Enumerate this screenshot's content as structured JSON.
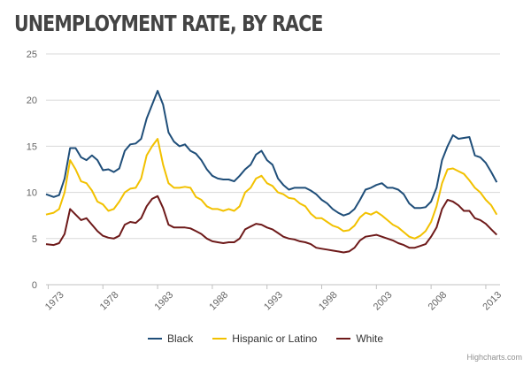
{
  "chart_data": {
    "type": "line",
    "title": "UNEMPLOYMENT RATE, BY RACE",
    "xlabel": "",
    "ylabel": "",
    "ylim": [
      0,
      25
    ],
    "y_ticks": [
      "0",
      "5",
      "10",
      "15",
      "20",
      "25"
    ],
    "x_ticks": [
      "1973",
      "1978",
      "1983",
      "1988",
      "1993",
      "1998",
      "2003",
      "2008",
      "2013"
    ],
    "x_tick_values": [
      1973,
      1978,
      1983,
      1988,
      1993,
      1998,
      2003,
      2008,
      2013
    ],
    "xlim": [
      1972.8,
      2014.3
    ],
    "series": [
      {
        "name": "Black",
        "color": "#1f4e79",
        "x": [
          1972.8,
          1973.5,
          1974.0,
          1974.5,
          1975.0,
          1975.5,
          1976.0,
          1976.5,
          1977.0,
          1977.5,
          1978.0,
          1978.5,
          1979.0,
          1979.5,
          1980.0,
          1980.5,
          1981.0,
          1981.5,
          1982.0,
          1982.5,
          1983.0,
          1983.5,
          1984.0,
          1984.5,
          1985.0,
          1985.5,
          1986.0,
          1986.5,
          1987.0,
          1987.5,
          1988.0,
          1988.5,
          1989.0,
          1989.5,
          1990.0,
          1990.5,
          1991.0,
          1991.5,
          1992.0,
          1992.5,
          1993.0,
          1993.5,
          1994.0,
          1994.5,
          1995.0,
          1995.5,
          1996.0,
          1996.5,
          1997.0,
          1997.5,
          1998.0,
          1998.5,
          1999.0,
          1999.5,
          2000.0,
          2000.5,
          2001.0,
          2001.5,
          2002.0,
          2002.5,
          2003.0,
          2003.5,
          2004.0,
          2004.5,
          2005.0,
          2005.5,
          2006.0,
          2006.5,
          2007.0,
          2007.5,
          2008.0,
          2008.5,
          2009.0,
          2009.5,
          2010.0,
          2010.5,
          2011.0,
          2011.5,
          2012.0,
          2012.5,
          2013.0,
          2013.5,
          2014.0
        ],
        "values": [
          9.8,
          9.5,
          9.7,
          11.5,
          14.8,
          14.8,
          13.8,
          13.5,
          14.0,
          13.5,
          12.4,
          12.5,
          12.2,
          12.6,
          14.5,
          15.2,
          15.3,
          15.8,
          18.0,
          19.5,
          21.0,
          19.5,
          16.5,
          15.5,
          15.0,
          15.2,
          14.5,
          14.2,
          13.5,
          12.5,
          11.8,
          11.5,
          11.4,
          11.4,
          11.2,
          11.8,
          12.5,
          13.0,
          14.1,
          14.5,
          13.5,
          13.0,
          11.5,
          10.8,
          10.3,
          10.5,
          10.5,
          10.5,
          10.2,
          9.8,
          9.2,
          8.8,
          8.2,
          7.8,
          7.5,
          7.7,
          8.2,
          9.2,
          10.3,
          10.5,
          10.8,
          11.0,
          10.5,
          10.5,
          10.3,
          9.8,
          8.8,
          8.3,
          8.3,
          8.4,
          9.0,
          10.5,
          13.5,
          15.0,
          16.2,
          15.8,
          15.9,
          16.0,
          14.0,
          13.8,
          13.2,
          12.2,
          11.1
        ]
      },
      {
        "name": "Hispanic or Latino",
        "color": "#f2c100",
        "x": [
          1972.8,
          1973.5,
          1974.0,
          1974.5,
          1975.0,
          1975.5,
          1976.0,
          1976.5,
          1977.0,
          1977.5,
          1978.0,
          1978.5,
          1979.0,
          1979.5,
          1980.0,
          1980.5,
          1981.0,
          1981.5,
          1982.0,
          1982.5,
          1983.0,
          1983.5,
          1984.0,
          1984.5,
          1985.0,
          1985.5,
          1986.0,
          1986.5,
          1987.0,
          1987.5,
          1988.0,
          1988.5,
          1989.0,
          1989.5,
          1990.0,
          1990.5,
          1991.0,
          1991.5,
          1992.0,
          1992.5,
          1993.0,
          1993.5,
          1994.0,
          1994.5,
          1995.0,
          1995.5,
          1996.0,
          1996.5,
          1997.0,
          1997.5,
          1998.0,
          1998.5,
          1999.0,
          1999.5,
          2000.0,
          2000.5,
          2001.0,
          2001.5,
          2002.0,
          2002.5,
          2003.0,
          2003.5,
          2004.0,
          2004.5,
          2005.0,
          2005.5,
          2006.0,
          2006.5,
          2007.0,
          2007.5,
          2008.0,
          2008.5,
          2009.0,
          2009.5,
          2010.0,
          2010.5,
          2011.0,
          2011.5,
          2012.0,
          2012.5,
          2013.0,
          2013.5,
          2014.0
        ],
        "values": [
          7.6,
          7.8,
          8.2,
          10.0,
          13.5,
          12.5,
          11.2,
          11.0,
          10.2,
          9.0,
          8.7,
          8.0,
          8.2,
          9.0,
          10.0,
          10.4,
          10.5,
          11.5,
          14.0,
          15.0,
          15.8,
          13.0,
          11.0,
          10.5,
          10.5,
          10.6,
          10.5,
          9.5,
          9.2,
          8.5,
          8.2,
          8.2,
          8.0,
          8.2,
          8.0,
          8.5,
          10.0,
          10.5,
          11.5,
          11.8,
          11.0,
          10.7,
          10.0,
          9.8,
          9.4,
          9.3,
          8.8,
          8.5,
          7.7,
          7.2,
          7.2,
          6.8,
          6.4,
          6.2,
          5.8,
          5.9,
          6.4,
          7.3,
          7.8,
          7.6,
          7.9,
          7.5,
          7.0,
          6.5,
          6.2,
          5.7,
          5.2,
          5.0,
          5.3,
          5.8,
          6.8,
          8.5,
          11.0,
          12.5,
          12.6,
          12.3,
          12.0,
          11.3,
          10.5,
          10.0,
          9.2,
          8.6,
          7.6
        ]
      },
      {
        "name": "White",
        "color": "#6e1a1a",
        "x": [
          1972.8,
          1973.5,
          1974.0,
          1974.5,
          1975.0,
          1975.5,
          1976.0,
          1976.5,
          1977.0,
          1977.5,
          1978.0,
          1978.5,
          1979.0,
          1979.5,
          1980.0,
          1980.5,
          1981.0,
          1981.5,
          1982.0,
          1982.5,
          1983.0,
          1983.5,
          1984.0,
          1984.5,
          1985.0,
          1985.5,
          1986.0,
          1986.5,
          1987.0,
          1987.5,
          1988.0,
          1988.5,
          1989.0,
          1989.5,
          1990.0,
          1990.5,
          1991.0,
          1991.5,
          1992.0,
          1992.5,
          1993.0,
          1993.5,
          1994.0,
          1994.5,
          1995.0,
          1995.5,
          1996.0,
          1996.5,
          1997.0,
          1997.5,
          1998.0,
          1998.5,
          1999.0,
          1999.5,
          2000.0,
          2000.5,
          2001.0,
          2001.5,
          2002.0,
          2002.5,
          2003.0,
          2003.5,
          2004.0,
          2004.5,
          2005.0,
          2005.5,
          2006.0,
          2006.5,
          2007.0,
          2007.5,
          2008.0,
          2008.5,
          2009.0,
          2009.5,
          2010.0,
          2010.5,
          2011.0,
          2011.5,
          2012.0,
          2012.5,
          2013.0,
          2013.5,
          2014.0
        ],
        "values": [
          4.4,
          4.3,
          4.5,
          5.5,
          8.2,
          7.6,
          7.0,
          7.2,
          6.5,
          5.8,
          5.3,
          5.1,
          5.0,
          5.3,
          6.5,
          6.8,
          6.7,
          7.2,
          8.5,
          9.3,
          9.6,
          8.3,
          6.5,
          6.2,
          6.2,
          6.2,
          6.1,
          5.8,
          5.5,
          5.0,
          4.7,
          4.6,
          4.5,
          4.6,
          4.6,
          5.0,
          6.0,
          6.3,
          6.6,
          6.5,
          6.2,
          6.0,
          5.6,
          5.2,
          5.0,
          4.9,
          4.7,
          4.6,
          4.4,
          4.0,
          3.9,
          3.8,
          3.7,
          3.6,
          3.5,
          3.6,
          4.0,
          4.8,
          5.2,
          5.3,
          5.4,
          5.2,
          5.0,
          4.8,
          4.5,
          4.3,
          4.0,
          4.0,
          4.2,
          4.4,
          5.2,
          6.2,
          8.2,
          9.2,
          9.0,
          8.6,
          8.0,
          8.0,
          7.2,
          7.0,
          6.6,
          6.0,
          5.4
        ]
      }
    ]
  },
  "credits": "Highcharts.com"
}
